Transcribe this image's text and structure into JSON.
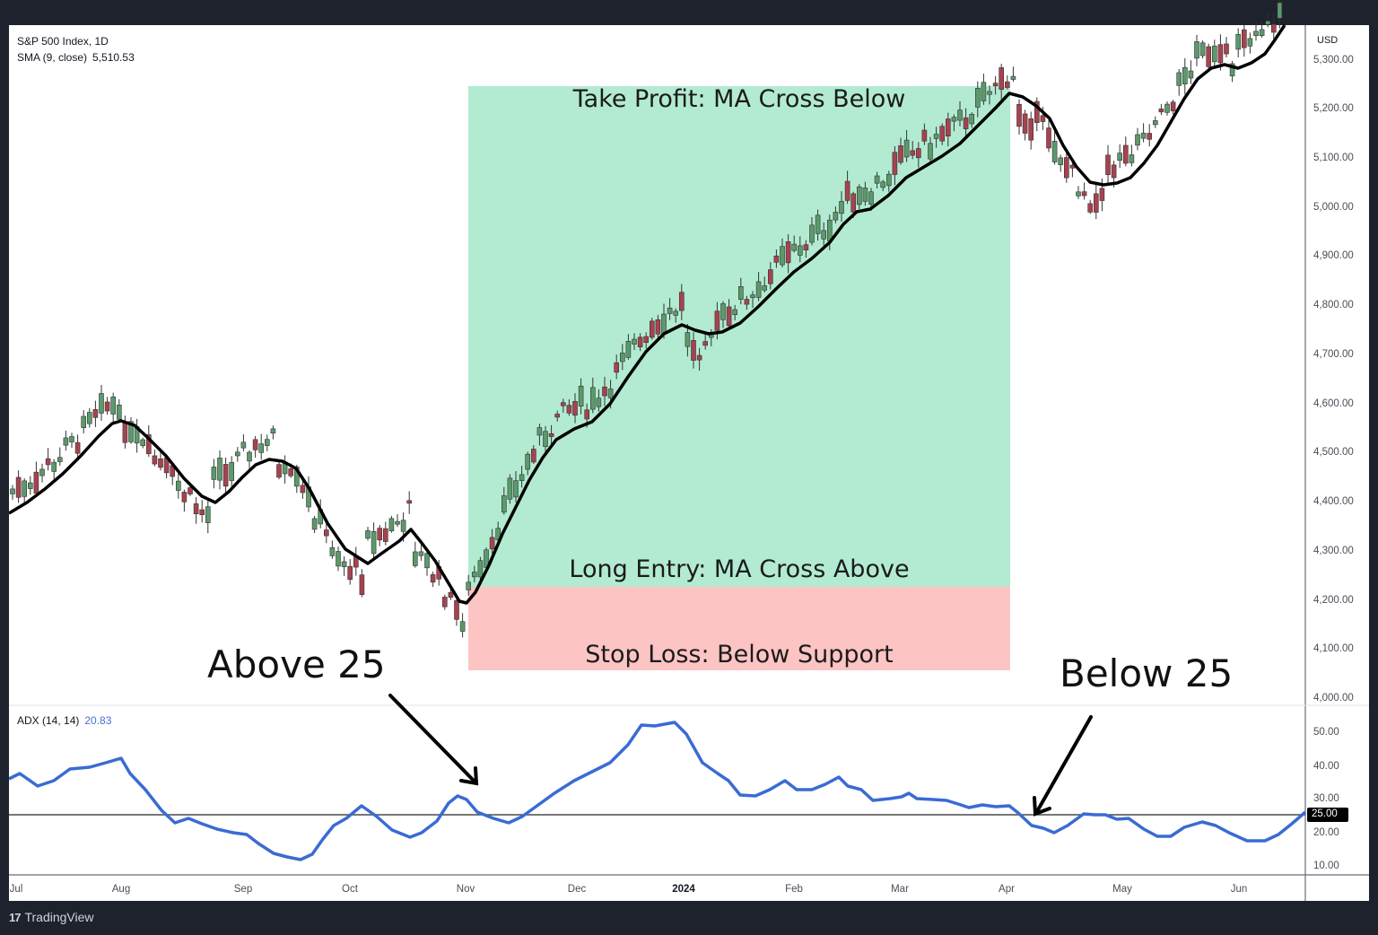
{
  "header": {
    "symbol_title": "S&P 500 Index, 1D",
    "sma_label": "SMA (9, close)",
    "sma_value": "5,510.53",
    "currency": "USD"
  },
  "adx_pane": {
    "label": "ADX (14, 14)",
    "value": "20.83",
    "threshold_badge": "25.00"
  },
  "annotations": {
    "take_profit": "Take Profit: MA Cross Below",
    "long_entry": "Long Entry: MA Cross Above",
    "stop_loss": "Stop Loss: Below Support",
    "above_25": "Above 25",
    "below_25": "Below 25"
  },
  "footer": {
    "brand_logo": "17",
    "brand_name": "TradingView"
  },
  "colors": {
    "background_frame": "#1e222d",
    "up_candle": "#5b9a6b",
    "down_candle": "#a8424f",
    "sma_line": "#000000",
    "adx_line": "#3a6bd4",
    "take_profit_zone": "#b2ebd2",
    "stop_loss_zone": "#fdc4c4"
  },
  "chart_data": [
    {
      "type": "line",
      "title": "S&P 500 Index, 1D with SMA (9, close)",
      "xlabel": "",
      "ylabel": "USD",
      "x": [
        "Jul",
        "Aug",
        "Sep",
        "Oct",
        "Nov",
        "Dec",
        "2024",
        "Feb",
        "Mar",
        "Apr",
        "May",
        "Jun"
      ],
      "series": [
        {
          "name": "SMA (9, close) approx. month-start",
          "values": [
            4390,
            4540,
            4445,
            4270,
            4205,
            4555,
            4755,
            4870,
            5065,
            5220,
            5030,
            5260
          ]
        }
      ],
      "ylim": [
        4000,
        5320
      ],
      "yticks": [
        "4,000.00",
        "4,100.00",
        "4,200.00",
        "4,300.00",
        "4,400.00",
        "4,500.00",
        "4,600.00",
        "4,700.00",
        "4,800.00",
        "4,900.00",
        "5,000.00",
        "5,100.00",
        "5,200.00",
        "5,300.00"
      ],
      "last_value": 5510.53,
      "grid": false,
      "zones": [
        {
          "label": "Take Profit: MA Cross Below",
          "from": 4220,
          "to": 5245,
          "color": "#b2ebd2",
          "x_from": "Nov",
          "x_to": "Apr"
        },
        {
          "label": "Stop Loss: Below Support",
          "from": 4045,
          "to": 4220,
          "color": "#fdc4c4",
          "x_from": "Nov",
          "x_to": "Apr"
        }
      ]
    },
    {
      "type": "line",
      "title": "ADX (14, 14)",
      "x": [
        "Jul",
        "Aug",
        "Sep",
        "Oct",
        "Nov",
        "Dec",
        "2024",
        "Feb",
        "Mar",
        "Apr",
        "May",
        "Jun"
      ],
      "series": [
        {
          "name": "ADX",
          "values": [
            36,
            41,
            21,
            27,
            27,
            34,
            52,
            34,
            30,
            27,
            25,
            22
          ]
        }
      ],
      "ylim": [
        7,
        55
      ],
      "yticks": [
        "10.00",
        "20.00",
        "30.00",
        "40.00",
        "50.00"
      ],
      "reference_line": 25,
      "last_value": 20.83,
      "annotations": [
        "Above 25 (early Nov)",
        "Below 25 (early Apr)"
      ]
    }
  ]
}
